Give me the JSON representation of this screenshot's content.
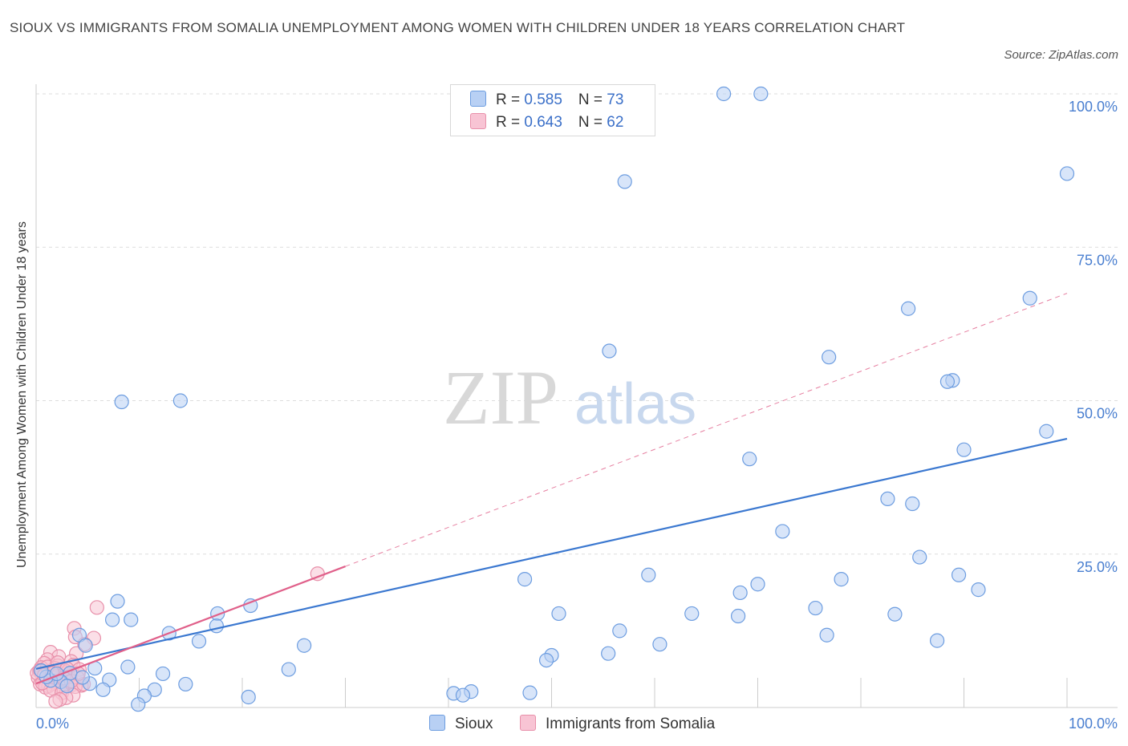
{
  "title": "SIOUX VS IMMIGRANTS FROM SOMALIA UNEMPLOYMENT AMONG WOMEN WITH CHILDREN UNDER 18 YEARS CORRELATION CHART",
  "source": "Source: ZipAtlas.com",
  "watermark": {
    "zip": "ZIP",
    "atlas": "atlas"
  },
  "legend": {
    "r_label": "R = ",
    "n_label": "N = ",
    "series": [
      {
        "name": "Sioux",
        "r": "0.585",
        "n": "73"
      },
      {
        "name": "Immigrants from Somalia",
        "r": "0.643",
        "n": "62"
      }
    ]
  },
  "colors": {
    "sioux_fill": "#b8d0f4",
    "sioux_stroke": "#6d9de0",
    "sioux_line": "#3b78d0",
    "somalia_fill": "#f8c4d4",
    "somalia_stroke": "#e890aa",
    "somalia_line": "#e0608a",
    "grid": "#dddddd",
    "tick_text": "#4a7fd0"
  },
  "chart_data": {
    "type": "scatter",
    "xlabel": "",
    "ylabel": "Unemployment Among Women with Children Under 18 years",
    "xlim": [
      0,
      100
    ],
    "ylim": [
      0,
      100
    ],
    "x_tick_labels": [
      "0.0%",
      "100.0%"
    ],
    "y_ticks": [
      25,
      50,
      75,
      100
    ],
    "y_tick_labels": [
      "25.0%",
      "50.0%",
      "75.0%",
      "100.0%"
    ],
    "grid": true,
    "series": [
      {
        "name": "Sioux",
        "trend": {
          "x": [
            0,
            100
          ],
          "y": [
            6.3,
            43.8
          ],
          "style": "solid"
        },
        "points": [
          [
            70.3,
            100.0
          ],
          [
            100.0,
            87.0
          ],
          [
            57.1,
            85.7
          ],
          [
            66.7,
            100.0
          ],
          [
            96.4,
            66.7
          ],
          [
            84.6,
            65.0
          ],
          [
            55.6,
            58.1
          ],
          [
            76.9,
            57.1
          ],
          [
            88.9,
            53.3
          ],
          [
            88.4,
            53.1
          ],
          [
            8.3,
            49.8
          ],
          [
            14.0,
            50.0
          ],
          [
            98.0,
            45.0
          ],
          [
            90.0,
            42.0
          ],
          [
            69.2,
            40.5
          ],
          [
            82.6,
            34.0
          ],
          [
            85.0,
            33.2
          ],
          [
            72.4,
            28.7
          ],
          [
            85.7,
            24.5
          ],
          [
            89.5,
            21.6
          ],
          [
            59.4,
            21.6
          ],
          [
            78.1,
            20.9
          ],
          [
            47.4,
            20.9
          ],
          [
            70.0,
            20.1
          ],
          [
            68.3,
            18.7
          ],
          [
            91.4,
            19.2
          ],
          [
            7.9,
            17.3
          ],
          [
            20.8,
            16.6
          ],
          [
            75.6,
            16.2
          ],
          [
            63.6,
            15.3
          ],
          [
            50.7,
            15.3
          ],
          [
            83.3,
            15.2
          ],
          [
            17.6,
            15.3
          ],
          [
            68.1,
            14.9
          ],
          [
            7.4,
            14.3
          ],
          [
            9.2,
            14.3
          ],
          [
            17.5,
            13.3
          ],
          [
            56.6,
            12.5
          ],
          [
            12.9,
            12.1
          ],
          [
            76.7,
            11.8
          ],
          [
            4.2,
            11.8
          ],
          [
            87.4,
            10.9
          ],
          [
            15.8,
            10.8
          ],
          [
            60.5,
            10.3
          ],
          [
            26.0,
            10.1
          ],
          [
            4.8,
            10.1
          ],
          [
            50.0,
            8.5
          ],
          [
            55.5,
            8.8
          ],
          [
            49.5,
            7.7
          ],
          [
            8.9,
            6.6
          ],
          [
            5.7,
            6.4
          ],
          [
            24.5,
            6.2
          ],
          [
            12.3,
            5.5
          ],
          [
            3.3,
            5.6
          ],
          [
            7.1,
            4.5
          ],
          [
            14.5,
            3.8
          ],
          [
            5.2,
            3.9
          ],
          [
            2.4,
            4.2
          ],
          [
            11.5,
            2.9
          ],
          [
            1.4,
            4.4
          ],
          [
            6.5,
            2.9
          ],
          [
            10.5,
            1.9
          ],
          [
            47.9,
            2.4
          ],
          [
            40.5,
            2.3
          ],
          [
            42.2,
            2.6
          ],
          [
            20.6,
            1.7
          ],
          [
            9.9,
            0.5
          ],
          [
            41.4,
            2.0
          ],
          [
            1.0,
            5.0
          ],
          [
            0.5,
            6.0
          ],
          [
            2.0,
            5.5
          ],
          [
            3.0,
            3.5
          ],
          [
            4.5,
            4.9
          ]
        ]
      },
      {
        "name": "Immigrants from Somalia",
        "trend": {
          "x": [
            0,
            30.0
          ],
          "y": [
            3.9,
            23.0
          ],
          "style": "solid",
          "extend_to": [
            100,
            67.5
          ],
          "extend_style": "dashed"
        },
        "points": [
          [
            27.3,
            21.8
          ],
          [
            5.9,
            16.3
          ],
          [
            3.7,
            12.9
          ],
          [
            3.8,
            11.5
          ],
          [
            5.6,
            11.3
          ],
          [
            4.7,
            10.3
          ],
          [
            1.4,
            9.0
          ],
          [
            3.9,
            8.8
          ],
          [
            2.2,
            8.3
          ],
          [
            3.4,
            7.5
          ],
          [
            1.1,
            7.8
          ],
          [
            3.6,
            6.9
          ],
          [
            0.8,
            7.2
          ],
          [
            0.5,
            6.5
          ],
          [
            2.1,
            6.8
          ],
          [
            4.2,
            6.2
          ],
          [
            1.8,
            6.4
          ],
          [
            0.3,
            5.9
          ],
          [
            2.7,
            5.7
          ],
          [
            1.3,
            5.5
          ],
          [
            3.1,
            5.4
          ],
          [
            0.6,
            5.2
          ],
          [
            2.4,
            5.1
          ],
          [
            1.6,
            4.9
          ],
          [
            0.2,
            4.8
          ],
          [
            3.3,
            4.6
          ],
          [
            1.0,
            4.5
          ],
          [
            2.0,
            4.4
          ],
          [
            0.7,
            4.2
          ],
          [
            2.9,
            4.1
          ],
          [
            1.5,
            3.9
          ],
          [
            0.4,
            3.8
          ],
          [
            3.5,
            3.7
          ],
          [
            2.3,
            3.6
          ],
          [
            1.2,
            3.5
          ],
          [
            4.4,
            3.6
          ],
          [
            0.9,
            3.3
          ],
          [
            2.6,
            3.2
          ],
          [
            1.7,
            3.1
          ],
          [
            3.8,
            3.4
          ],
          [
            0.1,
            5.6
          ],
          [
            0.4,
            6.1
          ],
          [
            1.9,
            5.8
          ],
          [
            2.8,
            6.0
          ],
          [
            3.2,
            5.0
          ],
          [
            4.0,
            4.9
          ],
          [
            4.6,
            3.8
          ],
          [
            1.4,
            2.8
          ],
          [
            2.5,
            2.4
          ],
          [
            3.6,
            2.0
          ],
          [
            2.9,
            1.6
          ],
          [
            2.3,
            1.3
          ],
          [
            1.9,
            1.0
          ],
          [
            0.6,
            4.0
          ],
          [
            1.1,
            6.6
          ],
          [
            2.1,
            7.3
          ],
          [
            3.0,
            6.3
          ],
          [
            0.8,
            5.3
          ],
          [
            1.6,
            5.6
          ],
          [
            2.7,
            4.8
          ],
          [
            3.4,
            4.3
          ],
          [
            4.1,
            5.5
          ]
        ]
      }
    ]
  }
}
